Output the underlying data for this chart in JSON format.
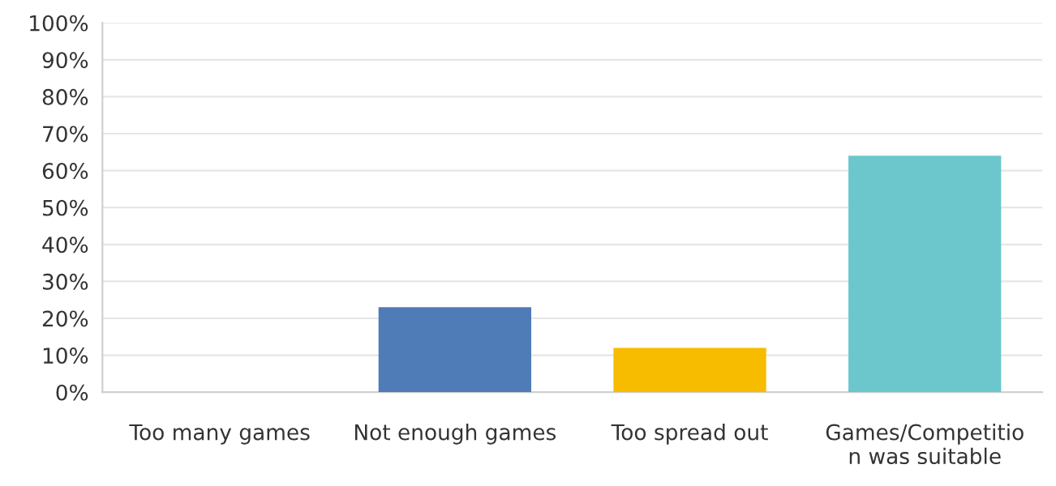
{
  "chart_data": {
    "type": "bar",
    "categories": [
      "Too many games",
      "Not enough games",
      "Too spread out",
      "Games/Competition was suitable"
    ],
    "values": [
      0,
      23,
      12,
      64
    ],
    "colors": [
      "#4f7bb7",
      "#4f7bb7",
      "#f7bb00",
      "#6bc7cb"
    ],
    "ylim": [
      0,
      100
    ],
    "yticks": [
      {
        "value": 0,
        "label": "0%"
      },
      {
        "value": 10,
        "label": "10%"
      },
      {
        "value": 20,
        "label": "20%"
      },
      {
        "value": 30,
        "label": "30%"
      },
      {
        "value": 40,
        "label": "40%"
      },
      {
        "value": 50,
        "label": "50%"
      },
      {
        "value": 60,
        "label": "60%"
      },
      {
        "value": 70,
        "label": "70%"
      },
      {
        "value": 80,
        "label": "80%"
      },
      {
        "value": 90,
        "label": "90%"
      },
      {
        "value": 100,
        "label": "100%"
      }
    ],
    "grid": "y"
  }
}
